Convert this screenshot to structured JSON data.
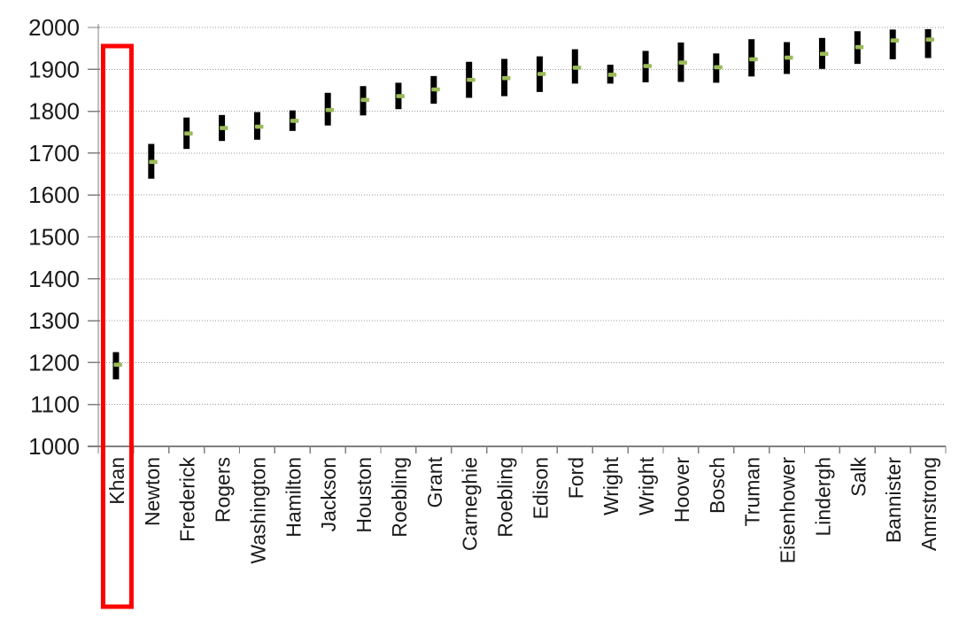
{
  "chart_data": {
    "type": "hilo-bar",
    "title": "",
    "xlabel": "",
    "ylabel": "",
    "categories": [
      "Khan",
      "Newton",
      "Frederick",
      "Rogers",
      "Washington",
      "Hamilton",
      "Jackson",
      "Houston",
      "Roebling",
      "Grant",
      "Carneghie",
      "Roebling",
      "Edison",
      "Ford",
      "Wright",
      "Wright",
      "Hoover",
      "Bosch",
      "Truman",
      "Eisenhower",
      "Lindergh",
      "Salk",
      "Bannister",
      "Amrstrong"
    ],
    "series": [
      {
        "name": "low",
        "values": [
          1160,
          1639,
          1710,
          1729,
          1732,
          1753,
          1766,
          1790,
          1805,
          1818,
          1832,
          1836,
          1846,
          1866,
          1866,
          1869,
          1870,
          1868,
          1883,
          1889,
          1901,
          1913,
          1924,
          1927
        ]
      },
      {
        "name": "high",
        "values": [
          1225,
          1722,
          1785,
          1791,
          1798,
          1802,
          1844,
          1860,
          1868,
          1884,
          1918,
          1925,
          1931,
          1948,
          1911,
          1944,
          1964,
          1938,
          1972,
          1965,
          1975,
          1991,
          1995,
          1996
        ]
      },
      {
        "name": "mean",
        "values": [
          1195,
          1679,
          1747,
          1760,
          1763,
          1777,
          1803,
          1827,
          1836,
          1852,
          1875,
          1879,
          1889,
          1904,
          1887,
          1908,
          1916,
          1905,
          1924,
          1928,
          1937,
          1953,
          1969,
          1971
        ]
      }
    ],
    "ylim": [
      1000,
      2000
    ],
    "ytick_step": 100,
    "yticks": [
      "1000",
      "1100",
      "1200",
      "1300",
      "1400",
      "1500",
      "1600",
      "1700",
      "1800",
      "1900",
      "2000"
    ],
    "grid": "horizontal-dotted",
    "legend": "none",
    "bar_color": "#000000",
    "marker_color": "#9BBB59",
    "axis_color": "#808080",
    "gridline_color": "#999999",
    "text_color": "#1a1a1a",
    "highlight": {
      "category": "Khan",
      "box_color": "#FF0000"
    }
  }
}
